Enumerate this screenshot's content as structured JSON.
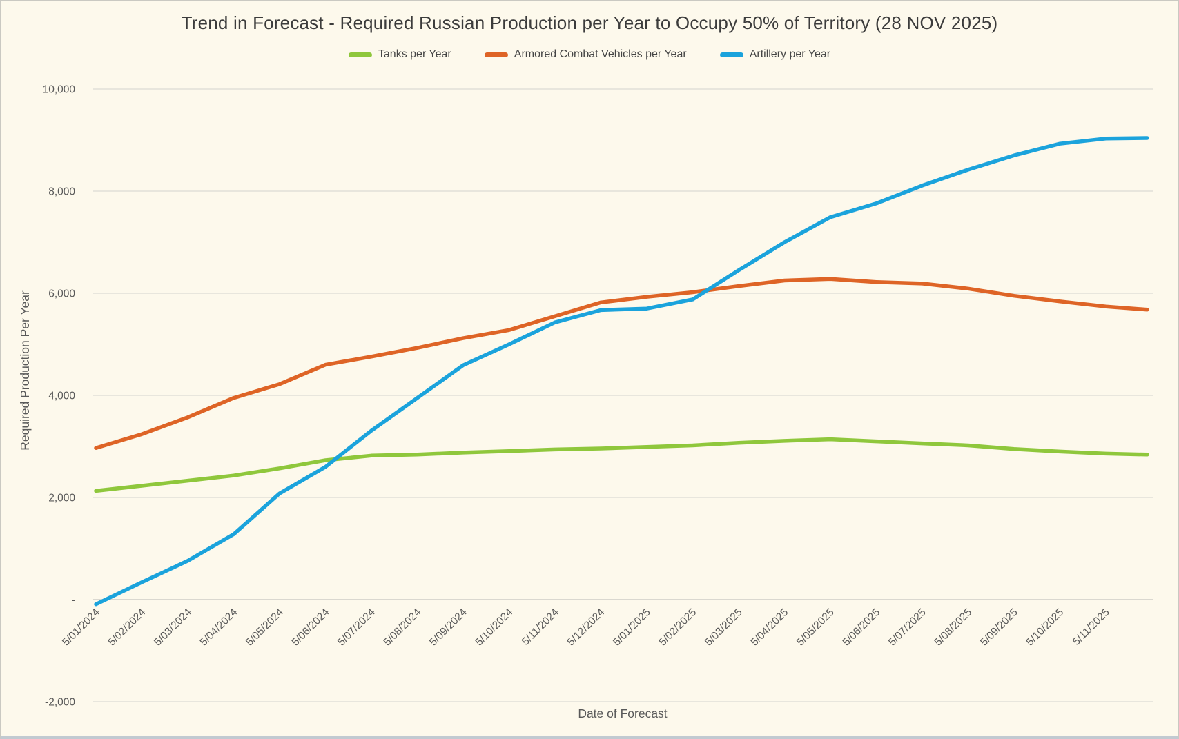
{
  "chart_data": {
    "type": "line",
    "title": "Trend in Forecast - Required Russian Production per Year to Occupy 50% of Territory (28 NOV 2025)",
    "x_label": "Date of Forecast",
    "y_label": "Required Production Per Year",
    "ylim": [
      -2000,
      10000
    ],
    "grid": "horizontal",
    "legend_position": "top-center",
    "y_ticks": [
      {
        "value": 10000,
        "label": "10,000"
      },
      {
        "value": 8000,
        "label": "8,000"
      },
      {
        "value": 6000,
        "label": "6,000"
      },
      {
        "value": 4000,
        "label": "4,000"
      },
      {
        "value": 2000,
        "label": "2,000"
      },
      {
        "value": 0,
        "label": "-"
      },
      {
        "value": -2000,
        "label": "-2,000"
      }
    ],
    "x_tick_labels": [
      "5/01/2024",
      "5/02/2024",
      "5/03/2024",
      "5/04/2024",
      "5/05/2024",
      "5/06/2024",
      "5/07/2024",
      "5/08/2024",
      "5/09/2024",
      "5/10/2024",
      "5/11/2024",
      "5/12/2024",
      "5/01/2025",
      "5/02/2025",
      "5/03/2025",
      "5/04/2025",
      "5/05/2025",
      "5/06/2025",
      "5/07/2025",
      "5/08/2025",
      "5/09/2025",
      "5/10/2025",
      "5/11/2025"
    ],
    "sampling_note": "Values sampled at each monthly tick; the 24th value is the line endpoint at the right plot edge (forecast date 28 NOV 2025 per title).",
    "series": [
      {
        "name": "Tanks per Year",
        "color": "#8FC73C",
        "values": [
          2130,
          2230,
          2330,
          2430,
          2570,
          2730,
          2820,
          2840,
          2880,
          2910,
          2940,
          2960,
          2990,
          3020,
          3070,
          3110,
          3140,
          3100,
          3060,
          3020,
          2950,
          2900,
          2860,
          2840
        ]
      },
      {
        "name": "Armored Combat Vehicles per Year",
        "color": "#DE6426",
        "values": [
          2970,
          3240,
          3570,
          3950,
          4220,
          4600,
          4760,
          4930,
          5120,
          5280,
          5550,
          5820,
          5930,
          6020,
          6140,
          6250,
          6280,
          6220,
          6190,
          6090,
          5950,
          5840,
          5740,
          5680
        ]
      },
      {
        "name": "Artillery per Year",
        "color": "#1BA3DC",
        "values": [
          -90,
          340,
          760,
          1280,
          2080,
          2600,
          3310,
          3950,
          4590,
          5000,
          5430,
          5670,
          5700,
          5880,
          6450,
          7000,
          7490,
          7760,
          8110,
          8420,
          8700,
          8930,
          9030,
          9040
        ]
      }
    ]
  }
}
